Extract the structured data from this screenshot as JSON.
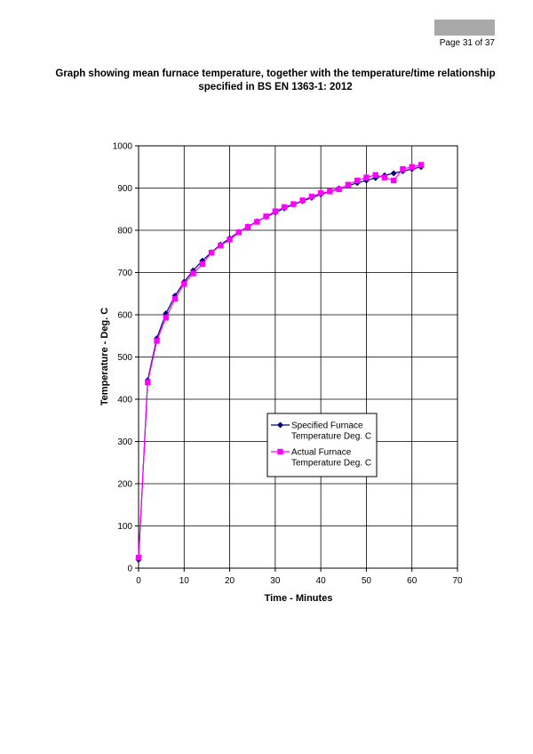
{
  "header": {
    "page_label": "Page 31 of 37"
  },
  "title": {
    "line1": "Graph showing mean furnace temperature, together with the temperature/time relationship",
    "line2": "specified in BS EN 1363-1: 2012"
  },
  "chart_data": {
    "type": "line",
    "title": "",
    "xlabel": "Time - Minutes",
    "ylabel": "Temperature - Deg. C",
    "xlim": [
      0,
      70
    ],
    "ylim": [
      0,
      1000
    ],
    "xticks": [
      0,
      10,
      20,
      30,
      40,
      50,
      60,
      70
    ],
    "yticks": [
      0,
      100,
      200,
      300,
      400,
      500,
      600,
      700,
      800,
      900,
      1000
    ],
    "grid": true,
    "legend_position": "center-right",
    "series": [
      {
        "name": "Specified Furnace Temperature Deg. C",
        "color": "#000080",
        "marker": "diamond",
        "x": [
          0,
          2,
          4,
          6,
          8,
          10,
          12,
          14,
          16,
          18,
          20,
          22,
          24,
          26,
          28,
          30,
          32,
          34,
          36,
          38,
          40,
          42,
          44,
          46,
          48,
          50,
          52,
          54,
          56,
          58,
          60,
          62
        ],
        "values": [
          20,
          445,
          544,
          603,
          645,
          678,
          705,
          728,
          748,
          766,
          781,
          796,
          809,
          821,
          832,
          842,
          852,
          861,
          869,
          877,
          885,
          892,
          899,
          906,
          912,
          918,
          924,
          930,
          935,
          940,
          945,
          950
        ]
      },
      {
        "name": "Actual Furnace Temperature Deg. C",
        "color": "#ff00ff",
        "marker": "square",
        "x": [
          0,
          2,
          4,
          6,
          8,
          10,
          12,
          14,
          16,
          18,
          20,
          22,
          24,
          26,
          28,
          30,
          32,
          34,
          36,
          38,
          40,
          42,
          44,
          46,
          48,
          50,
          52,
          54,
          56,
          58,
          60,
          62
        ],
        "values": [
          25,
          440,
          538,
          593,
          638,
          673,
          698,
          720,
          747,
          764,
          778,
          795,
          808,
          820,
          833,
          845,
          855,
          862,
          871,
          880,
          888,
          892,
          897,
          908,
          918,
          925,
          931,
          925,
          918,
          945,
          950,
          955
        ]
      }
    ]
  }
}
